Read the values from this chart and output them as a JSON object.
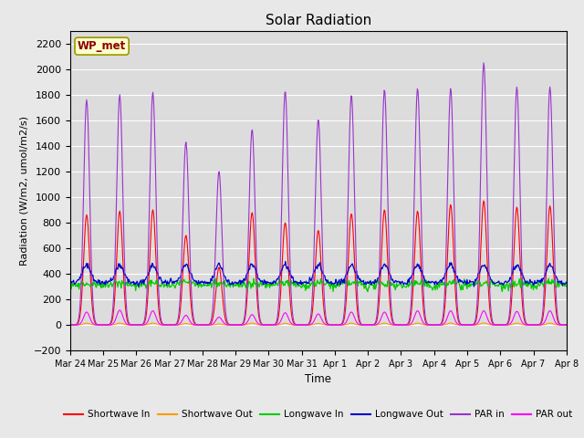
{
  "title": "Solar Radiation",
  "xlabel": "Time",
  "ylabel": "Radiation (W/m2, umol/m2/s)",
  "ylim": [
    -200,
    2300
  ],
  "yticks": [
    -200,
    0,
    200,
    400,
    600,
    800,
    1000,
    1200,
    1400,
    1600,
    1800,
    2000,
    2200
  ],
  "station_label": "WP_met",
  "series": [
    {
      "name": "Shortwave In",
      "color": "#ff0000"
    },
    {
      "name": "Shortwave Out",
      "color": "#ff9900"
    },
    {
      "name": "Longwave In",
      "color": "#00cc00"
    },
    {
      "name": "Longwave Out",
      "color": "#0000cc"
    },
    {
      "name": "PAR in",
      "color": "#9933cc"
    },
    {
      "name": "PAR out",
      "color": "#ff00ff"
    }
  ],
  "n_days": 15,
  "background_color": "#dcdcdc",
  "figure_bg": "#e8e8e8",
  "date_labels": [
    "Mar 24",
    "Mar 25",
    "Mar 26",
    "Mar 27",
    "Mar 28",
    "Mar 29",
    "Mar 30",
    "Mar 31",
    "Apr 1",
    "Apr 2",
    "Apr 3",
    "Apr 4",
    "Apr 5",
    "Apr 6",
    "Apr 7",
    "Apr 8"
  ]
}
